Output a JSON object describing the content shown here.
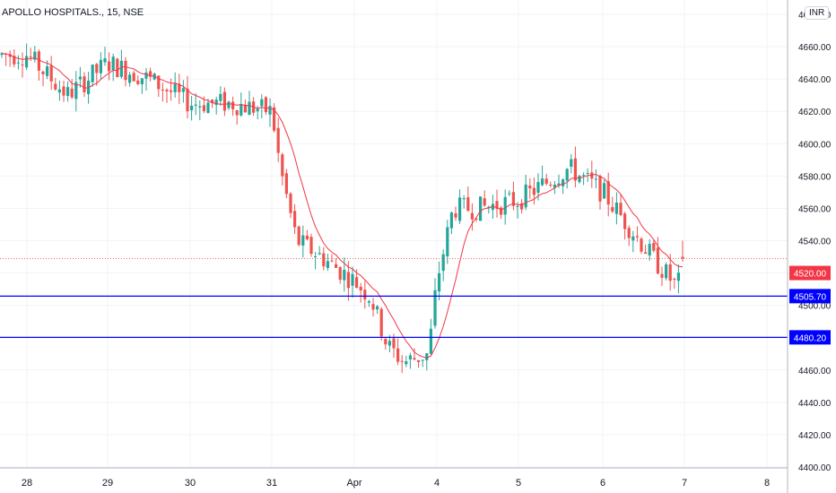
{
  "header": {
    "symbol_title": "APOLLO HOSPITALS., 15, NSE",
    "currency": "INR"
  },
  "colors": {
    "up": "#26a69a",
    "down": "#ef5350",
    "ma": "#f23645",
    "level_line": "#0000ff",
    "price_badge": "#f23645",
    "grid": "#f0f3fa",
    "axis_text": "#131722"
  },
  "chart_data": {
    "type": "candlestick",
    "title": "APOLLO HOSPITALS., 15, NSE",
    "xlabel": "",
    "ylabel": "",
    "ylim": [
      4400,
      4680
    ],
    "grid": true,
    "x_ticks": [
      "28",
      "29",
      "30",
      "31",
      "Apr",
      "4",
      "5",
      "6",
      "7",
      "8"
    ],
    "y_ticks": [
      "4400.00",
      "4420.00",
      "4440.00",
      "4460.00",
      "4480.00",
      "4500.00",
      "4520.00",
      "4540.00",
      "4560.00",
      "4580.00",
      "4600.00",
      "4620.00",
      "4640.00",
      "4660.00",
      "4680.00"
    ],
    "last_price": {
      "label": "4520.00",
      "value": 4520.0
    },
    "horizontal_levels": [
      {
        "label": "4505.70",
        "value": 4505.7
      },
      {
        "label": "4480.20",
        "value": 4480.2
      }
    ],
    "approx_close_path": [
      {
        "x": "28",
        "close": 4655
      },
      {
        "x": "28.5",
        "close": 4630
      },
      {
        "x": "29",
        "close": 4650
      },
      {
        "x": "29.5",
        "close": 4640
      },
      {
        "x": "30",
        "close": 4625
      },
      {
        "x": "30.5",
        "close": 4625
      },
      {
        "x": "31",
        "close": 4620
      },
      {
        "x": "31.1",
        "close": 4585
      },
      {
        "x": "31.3",
        "close": 4540
      },
      {
        "x": "31.6",
        "close": 4530
      },
      {
        "x": "Apr",
        "close": 4515
      },
      {
        "x": "Apr.2",
        "close": 4505
      },
      {
        "x": "Apr.4",
        "close": 4475
      },
      {
        "x": "Apr.6",
        "close": 4465
      },
      {
        "x": "Apr.9",
        "close": 4470
      },
      {
        "x": "4",
        "close": 4515
      },
      {
        "x": "4.2",
        "close": 4560
      },
      {
        "x": "4.5",
        "close": 4560
      },
      {
        "x": "5",
        "close": 4565
      },
      {
        "x": "5.3",
        "close": 4575
      },
      {
        "x": "5.6",
        "close": 4585
      },
      {
        "x": "6",
        "close": 4570
      },
      {
        "x": "6.3",
        "close": 4550
      },
      {
        "x": "6.6",
        "close": 4530
      },
      {
        "x": "6.9",
        "close": 4512
      },
      {
        "x": "7",
        "close": 4520
      }
    ]
  }
}
